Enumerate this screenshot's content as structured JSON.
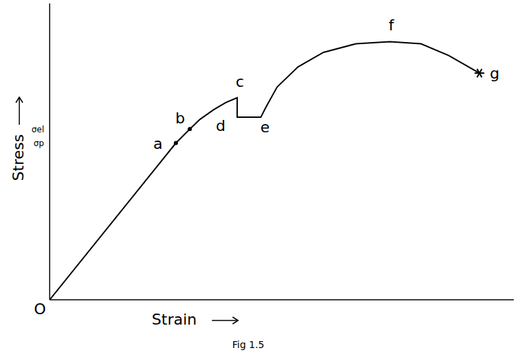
{
  "chart_data": {
    "type": "line",
    "ylabel": "Stress",
    "xlabel": "Strain",
    "caption": "Fig 1.5",
    "color": "#000000",
    "line_style": "solid",
    "grid": false,
    "tick_labels": "y",
    "xlim": [
      0,
      100
    ],
    "ylim": [
      0,
      100
    ],
    "yticks": [
      {
        "value": 52.9,
        "label": "σp"
      },
      {
        "value": 57.6,
        "label": "σel"
      }
    ],
    "x": [
      0,
      27.2,
      30.2,
      32.4,
      35.4,
      38,
      40.4,
      40.4,
      45.5,
      46.5,
      49,
      53.5,
      59,
      66,
      73.3,
      80,
      86,
      92.6
    ],
    "values": [
      0,
      52.9,
      57.6,
      60.9,
      64.2,
      66.6,
      68.2,
      61.6,
      61.6,
      64.7,
      71.8,
      78.6,
      83.5,
      86.4,
      87.1,
      86.4,
      82.4,
      76.5
    ],
    "points": [
      {
        "label": "O",
        "x": 0,
        "y": 0,
        "marker": "none"
      },
      {
        "label": "a",
        "x": 27.2,
        "y": 52.9,
        "marker": "dot"
      },
      {
        "label": "b",
        "x": 30.2,
        "y": 57.6,
        "marker": "dot"
      },
      {
        "label": "c",
        "x": 40.4,
        "y": 68.2,
        "marker": "none"
      },
      {
        "label": "d",
        "x": 40.4,
        "y": 61.6,
        "marker": "none"
      },
      {
        "label": "e",
        "x": 45.5,
        "y": 61.6,
        "marker": "none"
      },
      {
        "label": "f",
        "x": 73.3,
        "y": 87.1,
        "marker": "none"
      },
      {
        "label": "g",
        "x": 92.6,
        "y": 76.5,
        "marker": "star"
      }
    ]
  }
}
